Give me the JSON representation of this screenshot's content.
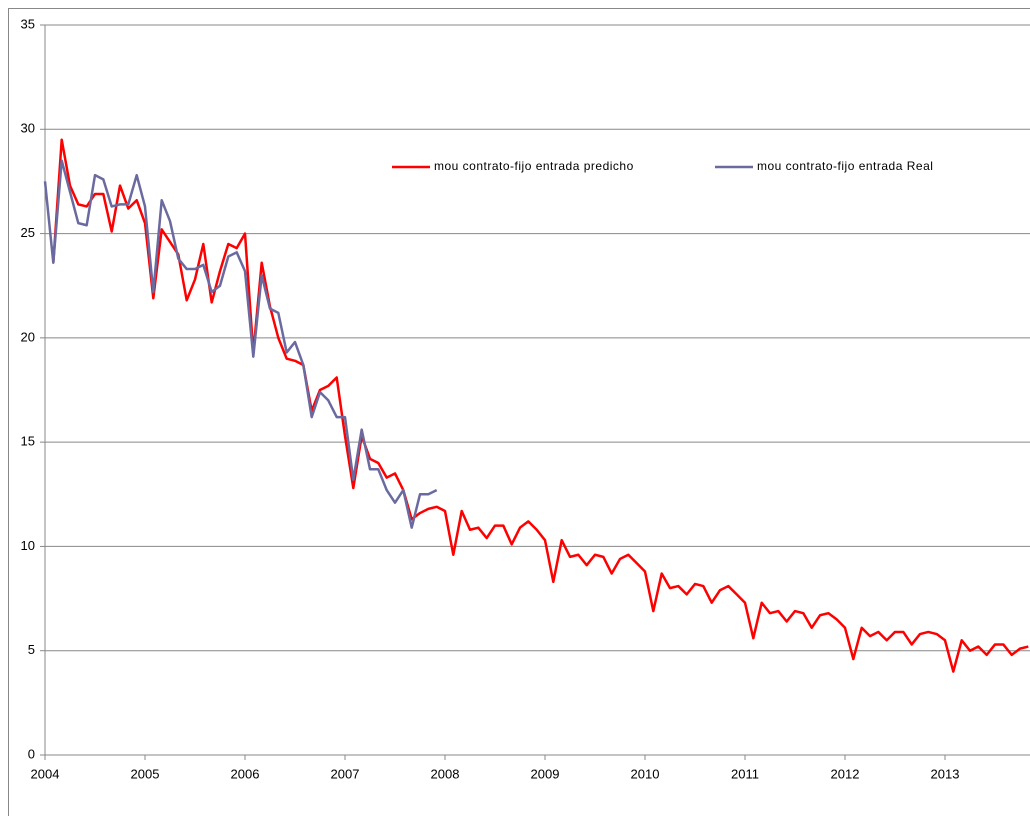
{
  "chart_data": {
    "type": "line",
    "x": [
      2004,
      2004.083,
      2004.167,
      2004.25,
      2004.333,
      2004.417,
      2004.5,
      2004.583,
      2004.667,
      2004.75,
      2004.833,
      2004.917,
      2005,
      2005.083,
      2005.167,
      2005.25,
      2005.333,
      2005.417,
      2005.5,
      2005.583,
      2005.667,
      2005.75,
      2005.833,
      2005.917,
      2006,
      2006.083,
      2006.167,
      2006.25,
      2006.333,
      2006.417,
      2006.5,
      2006.583,
      2006.667,
      2006.75,
      2006.833,
      2006.917,
      2007,
      2007.083,
      2007.167,
      2007.25,
      2007.333,
      2007.417,
      2007.5,
      2007.583,
      2007.667,
      2007.75,
      2007.833,
      2007.917,
      2008,
      2008.083,
      2008.167,
      2008.25,
      2008.333,
      2008.417,
      2008.5,
      2008.583,
      2008.667,
      2008.75,
      2008.833,
      2008.917,
      2009,
      2009.083,
      2009.167,
      2009.25,
      2009.333,
      2009.417,
      2009.5,
      2009.583,
      2009.667,
      2009.75,
      2009.833,
      2009.917,
      2010,
      2010.083,
      2010.167,
      2010.25,
      2010.333,
      2010.417,
      2010.5,
      2010.583,
      2010.667,
      2010.75,
      2010.833,
      2010.917,
      2011,
      2011.083,
      2011.167,
      2011.25,
      2011.333,
      2011.417,
      2011.5,
      2011.583,
      2011.667,
      2011.75,
      2011.833,
      2011.917,
      2012,
      2012.083,
      2012.167,
      2012.25,
      2012.333,
      2012.417,
      2012.5,
      2012.583,
      2012.667,
      2012.75,
      2012.833,
      2012.917,
      2013,
      2013.083,
      2013.167,
      2013.25,
      2013.333,
      2013.417,
      2013.5,
      2013.583,
      2013.667,
      2013.75,
      2013.833
    ],
    "series": [
      {
        "name": "mou contrato-fijo entrada predicho",
        "color": "#ff0000",
        "values": [
          null,
          23.6,
          29.5,
          27.3,
          26.4,
          26.3,
          26.9,
          26.9,
          25.1,
          27.3,
          26.2,
          26.6,
          25.5,
          21.9,
          25.2,
          24.6,
          24.0,
          21.8,
          22.8,
          24.5,
          21.7,
          23.2,
          24.5,
          24.3,
          25.0,
          19.3,
          23.6,
          21.5,
          20.0,
          19.0,
          18.9,
          18.7,
          16.5,
          17.5,
          17.7,
          18.1,
          15.3,
          12.8,
          15.3,
          14.2,
          14.0,
          13.3,
          13.5,
          12.7,
          11.3,
          11.6,
          11.8,
          11.9,
          11.7,
          9.6,
          11.7,
          10.8,
          10.9,
          10.4,
          11.0,
          11.0,
          10.1,
          10.9,
          11.2,
          10.8,
          10.3,
          8.3,
          10.3,
          9.5,
          9.6,
          9.1,
          9.6,
          9.5,
          8.7,
          9.4,
          9.6,
          9.2,
          8.8,
          6.9,
          8.7,
          8.0,
          8.1,
          7.7,
          8.2,
          8.1,
          7.3,
          7.9,
          8.1,
          7.7,
          7.3,
          5.6,
          7.3,
          6.8,
          6.9,
          6.4,
          6.9,
          6.8,
          6.1,
          6.7,
          6.8,
          6.5,
          6.1,
          4.6,
          6.1,
          5.7,
          5.9,
          5.5,
          5.9,
          5.9,
          5.3,
          5.8,
          5.9,
          5.8,
          5.5,
          4.0,
          5.5,
          5.0,
          5.2,
          4.8,
          5.3,
          5.3,
          4.8,
          5.1,
          5.2
        ]
      },
      {
        "name": "mou contrato-fijo entrada Real",
        "color": "#6a6aa0",
        "values": [
          27.5,
          23.6,
          28.5,
          27.0,
          25.5,
          25.4,
          27.8,
          27.6,
          26.3,
          26.4,
          26.4,
          27.8,
          26.3,
          22.2,
          26.6,
          25.6,
          23.8,
          23.3,
          23.3,
          23.5,
          22.2,
          22.5,
          23.9,
          24.1,
          23.2,
          19.1,
          23.0,
          21.4,
          21.2,
          19.3,
          19.8,
          18.7,
          16.2,
          17.4,
          17.0,
          16.2,
          16.2,
          13.2,
          15.6,
          13.7,
          13.7,
          12.7,
          12.1,
          12.7,
          10.9,
          12.5,
          12.5,
          12.7,
          null,
          null,
          null,
          null,
          null,
          null,
          null,
          null,
          null,
          null,
          null,
          null,
          null,
          null,
          null,
          null,
          null,
          null,
          null,
          null,
          null,
          null,
          null,
          null,
          null,
          null,
          null,
          null,
          null,
          null,
          null,
          null,
          null,
          null,
          null,
          null,
          null,
          null,
          null,
          null,
          null,
          null,
          null,
          null,
          null,
          null,
          null,
          null,
          null,
          null,
          null,
          null,
          null,
          null,
          null,
          null,
          null,
          null,
          null,
          null,
          null,
          null,
          null,
          null,
          null,
          null,
          null,
          null,
          null,
          null,
          null
        ]
      }
    ],
    "xlim": [
      2004,
      2013.85
    ],
    "xticks": [
      2004,
      2005,
      2006,
      2007,
      2008,
      2009,
      2010,
      2011,
      2012,
      2013
    ],
    "ylim": [
      0,
      35
    ],
    "yticks": [
      0,
      5,
      10,
      15,
      20,
      25,
      30,
      35
    ],
    "grid": true
  }
}
